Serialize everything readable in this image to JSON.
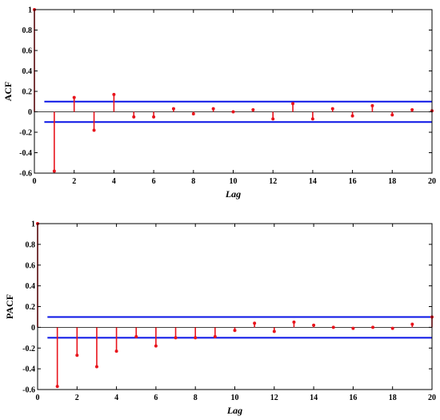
{
  "chart_data": [
    {
      "type": "stem",
      "ylabel": "ACF",
      "xlabel": "Lag",
      "xlim": [
        0,
        20
      ],
      "ylim": [
        -0.6,
        1
      ],
      "xticks": [
        0,
        2,
        4,
        6,
        8,
        10,
        12,
        14,
        16,
        18,
        20
      ],
      "xtick_labels": [
        "0",
        "2",
        "4",
        "6",
        "8",
        "10",
        "12",
        "14",
        "16",
        "18",
        "20"
      ],
      "yticks": [
        -0.6,
        -0.4,
        -0.2,
        0,
        0.2,
        0.4,
        0.6,
        0.8,
        1
      ],
      "ytick_labels": [
        "-0.6",
        "-0.4",
        "-0.2",
        "0",
        "0.2",
        "0.4",
        "0.6",
        "0.8",
        "1"
      ],
      "confidence_bounds": [
        0.1,
        -0.1
      ],
      "x": [
        0,
        1,
        2,
        3,
        4,
        5,
        6,
        7,
        8,
        9,
        10,
        11,
        12,
        13,
        14,
        15,
        16,
        17,
        18,
        19,
        20
      ],
      "values": [
        1.0,
        -0.58,
        0.14,
        -0.18,
        0.17,
        -0.05,
        -0.05,
        0.03,
        -0.02,
        0.03,
        0.0,
        0.02,
        -0.07,
        0.08,
        -0.07,
        0.03,
        -0.04,
        0.06,
        -0.03,
        0.02,
        0.01
      ],
      "colors": {
        "stem": "#e8141c",
        "bounds": "#0a14e6",
        "axis": "#000000"
      }
    },
    {
      "type": "stem",
      "ylabel": "PACF",
      "xlabel": "Lag",
      "xlim": [
        0,
        20
      ],
      "ylim": [
        -0.6,
        1
      ],
      "xticks": [
        0,
        2,
        4,
        6,
        8,
        10,
        12,
        14,
        16,
        18,
        20
      ],
      "xtick_labels": [
        "0",
        "2",
        "4",
        "6",
        "8",
        "10",
        "12",
        "14",
        "16",
        "18",
        "20"
      ],
      "yticks": [
        -0.6,
        -0.4,
        -0.2,
        0,
        0.2,
        0.4,
        0.6,
        0.8,
        1
      ],
      "ytick_labels": [
        "-0.6",
        "-0.4",
        "-0.2",
        "0",
        "0.2",
        "0.4",
        "0.6",
        "0.8",
        "1"
      ],
      "confidence_bounds": [
        0.1,
        -0.1
      ],
      "x": [
        0,
        1,
        2,
        3,
        4,
        5,
        6,
        7,
        8,
        9,
        10,
        11,
        12,
        13,
        14,
        15,
        16,
        17,
        18,
        19,
        20
      ],
      "values": [
        1.0,
        -0.57,
        -0.27,
        -0.38,
        -0.23,
        -0.09,
        -0.18,
        -0.1,
        -0.1,
        -0.09,
        -0.03,
        0.04,
        -0.04,
        0.05,
        0.02,
        0.0,
        -0.01,
        0.0,
        -0.01,
        0.03,
        0.1
      ],
      "colors": {
        "stem": "#e8141c",
        "bounds": "#0a14e6",
        "axis": "#000000"
      }
    }
  ]
}
